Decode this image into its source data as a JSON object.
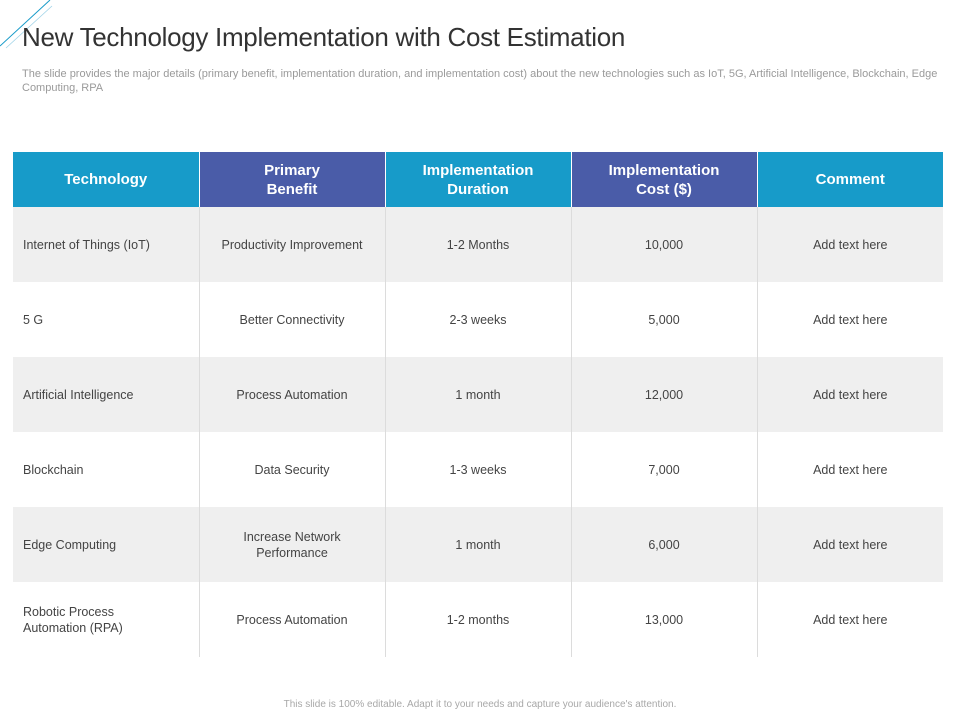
{
  "slide": {
    "title": "New Technology Implementation with Cost Estimation",
    "subtitle": "The slide provides the major details (primary benefit, implementation duration, and implementation cost) about the new technologies such as IoT, 5G, Artificial Intelligence, Blockchain, Edge Computing, RPA",
    "footer": "This slide is 100% editable.  Adapt it to your needs and capture your audience's attention."
  },
  "colors": {
    "header_teal": "#179bc9",
    "header_purple": "#4a5ca8",
    "row_shade": "#efefef"
  },
  "table": {
    "headers": [
      "Technology",
      "Primary\nBenefit",
      "Implementation\nDuration",
      "Implementation\nCost ($)",
      "Comment"
    ],
    "rows": [
      [
        "Internet of Things (IoT)",
        "Productivity Improvement",
        "1-2 Months",
        "10,000",
        "Add text here"
      ],
      [
        "5 G",
        "Better Connectivity",
        "2-3 weeks",
        "5,000",
        "Add text here"
      ],
      [
        "Artificial Intelligence",
        "Process Automation",
        "1 month",
        "12,000",
        "Add text here"
      ],
      [
        "Blockchain",
        "Data Security",
        "1-3 weeks",
        "7,000",
        "Add text here"
      ],
      [
        "Edge Computing",
        "Increase Network\nPerformance",
        "1 month",
        "6,000",
        "Add text here"
      ],
      [
        "Robotic Process\nAutomation (RPA)",
        "Process Automation",
        "1-2 months",
        "13,000",
        "Add text here"
      ]
    ]
  }
}
